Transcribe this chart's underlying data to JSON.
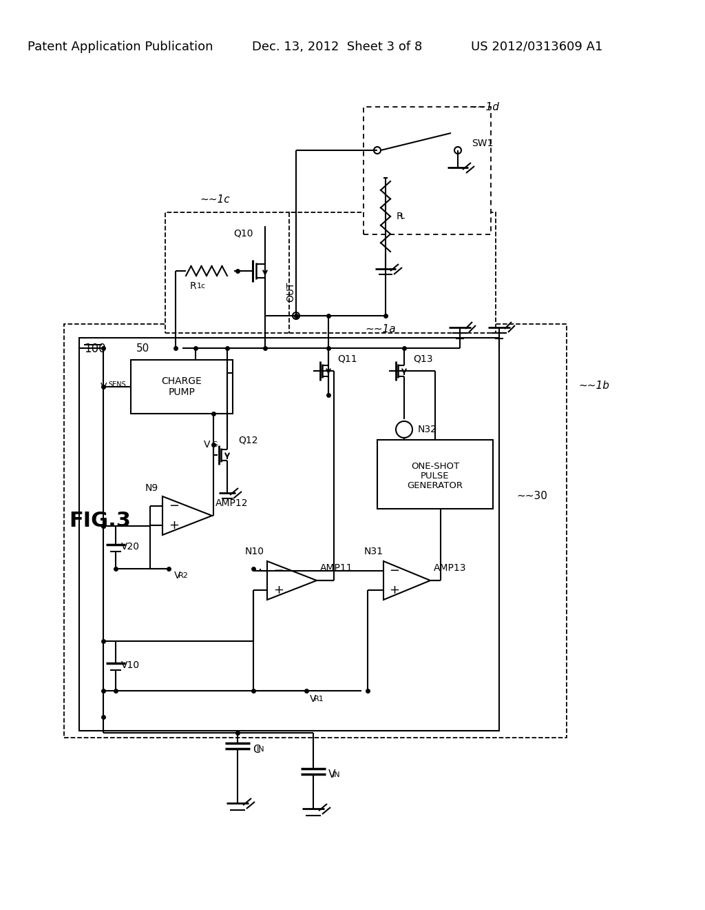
{
  "bg_color": "#ffffff",
  "header_left": "Patent Application Publication",
  "header_mid": "Dec. 13, 2012  Sheet 3 of 8",
  "header_right": "US 2012/0313609 A1"
}
